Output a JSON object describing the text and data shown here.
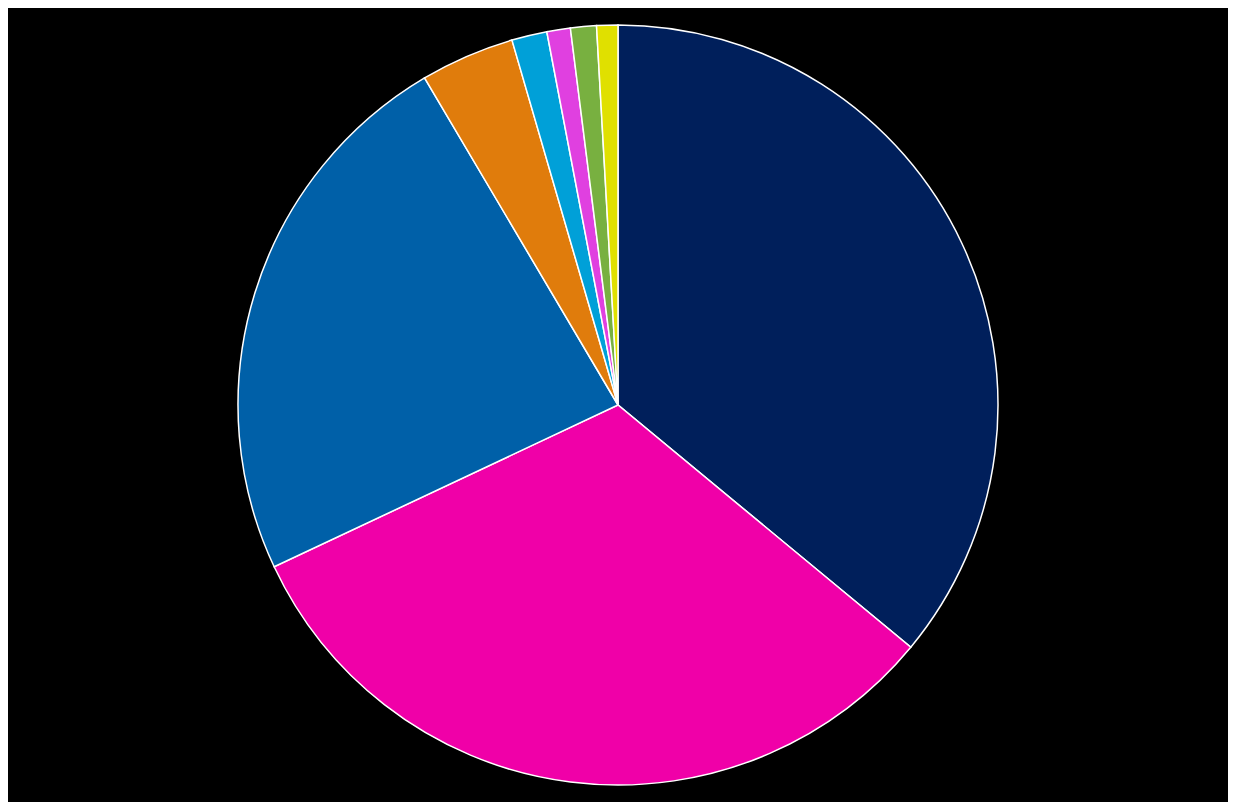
{
  "chart_data": {
    "type": "pie",
    "categories": [
      null,
      null,
      null,
      null,
      null,
      null,
      null,
      null
    ],
    "values": [
      36,
      32,
      23.5,
      4,
      1.5,
      1,
      1.1,
      0.9
    ],
    "colors": [
      "#001f5b",
      "#f000a8",
      "#0060a8",
      "#e07c0c",
      "#00a0d8",
      "#e040e0",
      "#78b040",
      "#e0e000"
    ]
  }
}
